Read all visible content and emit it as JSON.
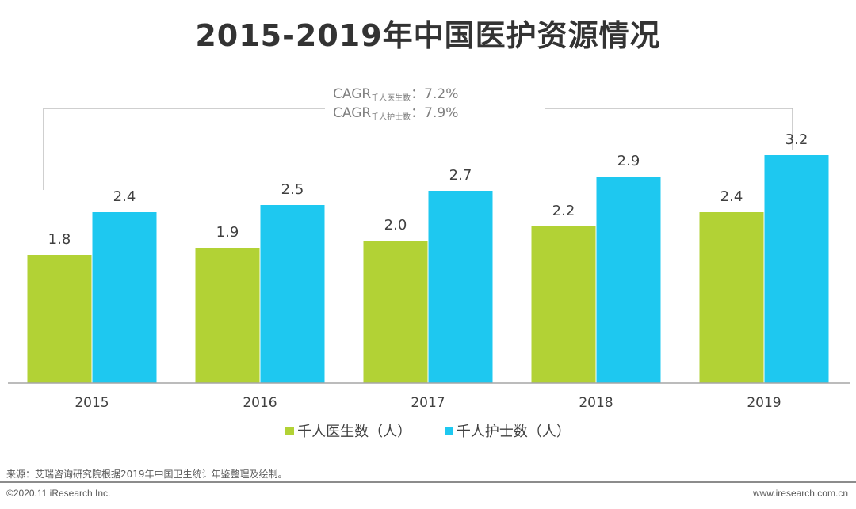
{
  "chart_data": {
    "type": "bar",
    "title": "2015-2019年中国医护资源情况",
    "categories": [
      "2015",
      "2016",
      "2017",
      "2018",
      "2019"
    ],
    "series": [
      {
        "name": "千人医生数（人）",
        "color": "#b2d235",
        "values": [
          1.8,
          1.9,
          2.0,
          2.2,
          2.4
        ]
      },
      {
        "name": "千人护士数（人）",
        "color": "#1ec8f0",
        "values": [
          2.4,
          2.5,
          2.7,
          2.9,
          3.2
        ]
      }
    ],
    "xlabel": "",
    "ylabel": "",
    "ylim": [
      0,
      5.4
    ],
    "grid": false,
    "legend": "bottom",
    "annotations": [
      {
        "label": "CAGR",
        "sub": "千人医生数",
        "value": "：7.2%"
      },
      {
        "label": "CAGR",
        "sub": "千人护士数",
        "value": "：7.9%"
      }
    ]
  },
  "footer": {
    "source": "来源：艾瑞咨询研究院根据2019年中国卫生统计年鉴整理及绘制。",
    "copyright": "©2020.11 iResearch Inc.",
    "website": "www.iresearch.com.cn"
  }
}
